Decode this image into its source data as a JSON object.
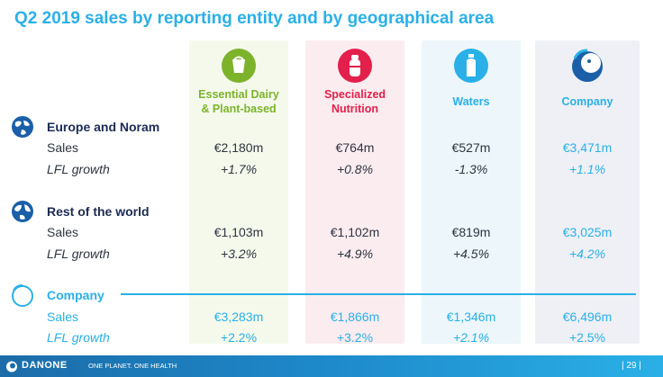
{
  "title": "Q2 2019 sales by reporting entity and by geographical area",
  "colors": {
    "accent": "#2ab0e6",
    "dairy": "#7cb32b",
    "nutrition": "#e2204b",
    "waters": "#2ab0e6",
    "company": "#2a74b8"
  },
  "columns": [
    {
      "label": "Essential Dairy\n& Plant-based",
      "icon": "cup-icon"
    },
    {
      "label": "Specialized\nNutrition",
      "icon": "baby-bottle-icon"
    },
    {
      "label": "Waters",
      "icon": "water-bottle-icon"
    },
    {
      "label": "Company",
      "icon": "danone-logo-icon"
    }
  ],
  "sections": [
    {
      "label": "Europe and Noram",
      "icon": "globe-icon",
      "sales_label": "Sales",
      "lfl_label": "LFL growth",
      "sales": [
        "€2,180m",
        "€764m",
        "€527m",
        "€3,471m"
      ],
      "lfl": [
        "+1.7%",
        "+0.8%",
        "-1.3%",
        "+1.1%"
      ]
    },
    {
      "label": "Rest of the world",
      "icon": "globe-icon",
      "sales_label": "Sales",
      "lfl_label": "LFL growth",
      "sales": [
        "€1,103m",
        "€1,102m",
        "€819m",
        "€3,025m"
      ],
      "lfl": [
        "+3.2%",
        "+4.9%",
        "+4.5%",
        "+4.2%"
      ]
    },
    {
      "label": "Company",
      "icon": "danone-logo-icon",
      "sales_label": "Sales",
      "lfl_label": "LFL growth",
      "sales": [
        "€3,283m",
        "€1,866m",
        "€1,346m",
        "€6,496m"
      ],
      "lfl": [
        "+2.2%",
        "+3.2%",
        "+2.1%",
        "+2.5%"
      ]
    }
  ],
  "footer": {
    "brand": "DANONE",
    "tagline": "ONE PLANET. ONE HEALTH",
    "page": "| 29 |"
  }
}
